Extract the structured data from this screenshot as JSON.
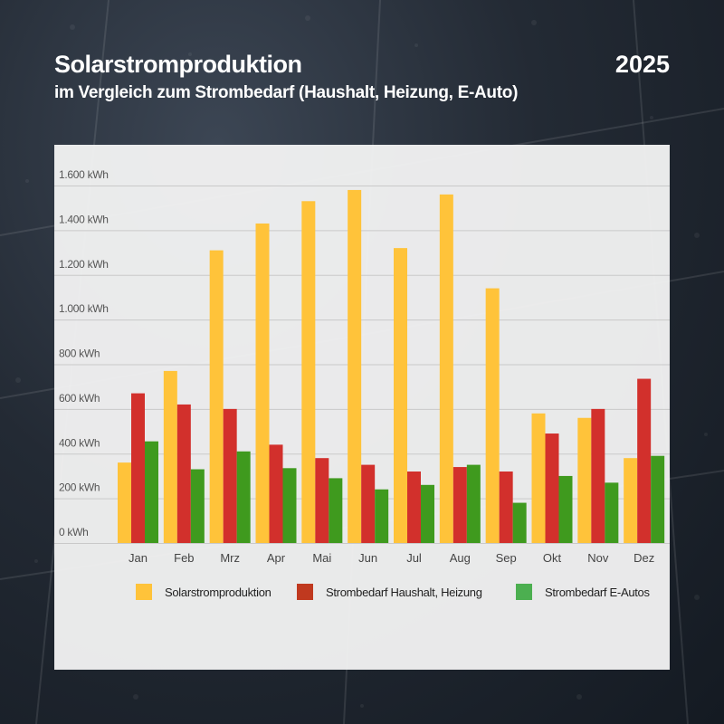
{
  "header": {
    "title": "Solarstromproduktion",
    "subtitle": "im Vergleich zum Strombedarf (Haushalt, Heizung, E-Auto)",
    "year": "2025"
  },
  "colors": {
    "solar": "#ffc33a",
    "household": "#d2302c",
    "ev": "#3f9a1e",
    "ev_legend": "#4caf50",
    "household_legend": "#c0391f"
  },
  "chart_data": {
    "type": "bar",
    "title": "Solarstromproduktion",
    "subtitle": "im Vergleich zum Strombedarf (Haushalt, Heizung, E-Auto)",
    "xlabel": "",
    "ylabel": "",
    "ylim": [
      0,
      1600
    ],
    "yticks": [
      0,
      200,
      400,
      600,
      800,
      1000,
      1200,
      1400,
      1600
    ],
    "ytick_labels": [
      "0 kWh",
      "200 kWh",
      "400 kWh",
      "600 kWh",
      "800 kWh",
      "1.000 kWh",
      "1.200 kWh",
      "1.400 kWh",
      "1.600 kWh"
    ],
    "categories": [
      "Jan",
      "Feb",
      "Mrz",
      "Apr",
      "Mai",
      "Jun",
      "Jul",
      "Aug",
      "Sep",
      "Okt",
      "Nov",
      "Dez"
    ],
    "series": [
      {
        "name": "Solarstromproduktion",
        "values": [
          360,
          770,
          1310,
          1430,
          1530,
          1580,
          1320,
          1560,
          1140,
          580,
          560,
          380
        ]
      },
      {
        "name": "Strombedarf Haushalt, Heizung",
        "values": [
          670,
          620,
          600,
          440,
          380,
          350,
          320,
          340,
          320,
          490,
          600,
          735
        ]
      },
      {
        "name": "Strombedarf E-Autos",
        "values": [
          455,
          330,
          410,
          335,
          290,
          240,
          260,
          350,
          180,
          300,
          270,
          390
        ]
      }
    ],
    "legend": [
      "Solarstromproduktion",
      "Strombedarf Haushalt, Heizung",
      "Strombedarf E-Autos"
    ],
    "legend_position": "bottom",
    "grid": true
  }
}
